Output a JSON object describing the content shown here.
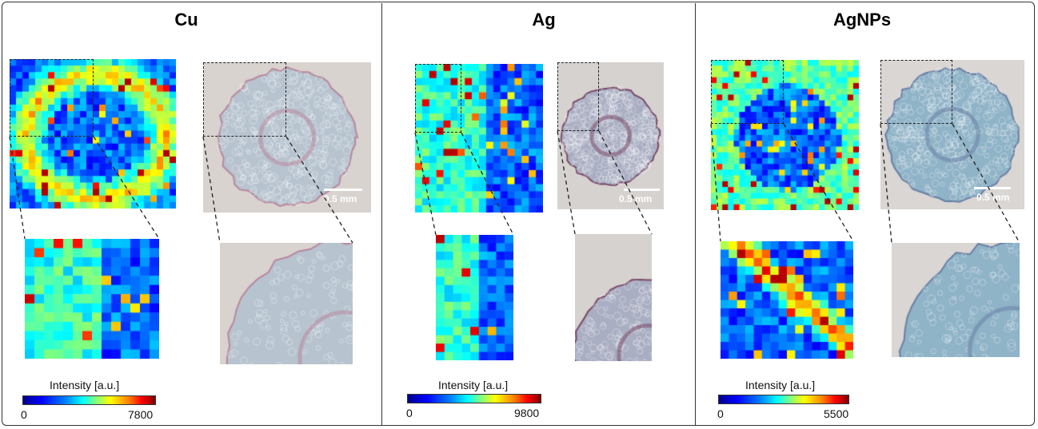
{
  "panels": [
    {
      "title": "Cu",
      "colorbar": {
        "label": "Intensity [a.u.]",
        "min": "0",
        "max": "7800"
      },
      "scalebar": "0.5 mm",
      "tissue_colors": {
        "bg": "#d8d3cf",
        "tissue": "#b7c4d0",
        "ring": "#b8879c"
      }
    },
    {
      "title": "Ag",
      "colorbar": {
        "label": "Intensity [a.u.]",
        "min": "0",
        "max": "9800"
      },
      "scalebar": "0.5 mm",
      "tissue_colors": {
        "bg": "#d6d2cf",
        "tissue": "#a9aec2",
        "ring": "#7a4a6a"
      }
    },
    {
      "title": "AgNPs",
      "colorbar": {
        "label": "Intensity [a.u.]",
        "min": "0",
        "max": "5500"
      },
      "scalebar": "0.5 mm",
      "tissue_colors": {
        "bg": "#d9d6d3",
        "tissue": "#8fb3c7",
        "ring": "#6a7fa5"
      }
    }
  ],
  "colormap": "jet"
}
